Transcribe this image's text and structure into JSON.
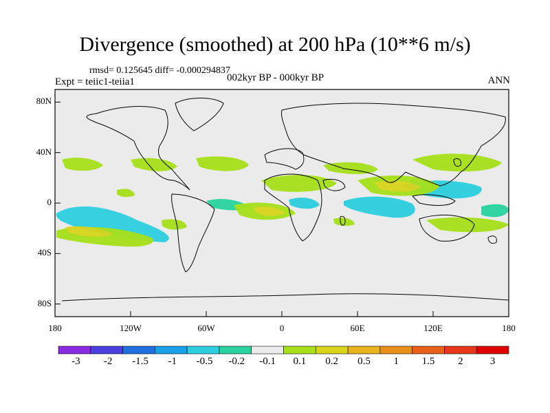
{
  "title": "Divergence (smoothed) at 200 hPa (10**6 m/s)",
  "stats": "rmsd= 0.125645 diff= -0.000294837",
  "experiment": "Expt = teiic1-teiia1",
  "period": "002kyr BP - 000kyr BP",
  "season": "ANN",
  "map": {
    "projection": "cylindrical equidistant",
    "background_color": "#ebebeb",
    "lat_ticks": [
      "80N",
      "40N",
      "0",
      "40S",
      "80S"
    ],
    "lon_ticks": [
      "180",
      "120W",
      "60W",
      "0",
      "60E",
      "120E",
      "180"
    ]
  },
  "colorbar": {
    "colors": [
      "#8a2be2",
      "#4b3fe0",
      "#1f6fe0",
      "#1aa0e8",
      "#2ccfe0",
      "#29d3a0",
      "#ebebeb",
      "#a6e01a",
      "#d8d41a",
      "#e6b41a",
      "#e8901a",
      "#e8601a",
      "#e8361a",
      "#e00000"
    ],
    "labels": [
      "-3",
      "-2",
      "-1.5",
      "-1",
      "-0.5",
      "-0.2",
      "-0.1",
      "0.1",
      "0.2",
      "0.5",
      "1",
      "1.5",
      "2",
      "3"
    ]
  }
}
